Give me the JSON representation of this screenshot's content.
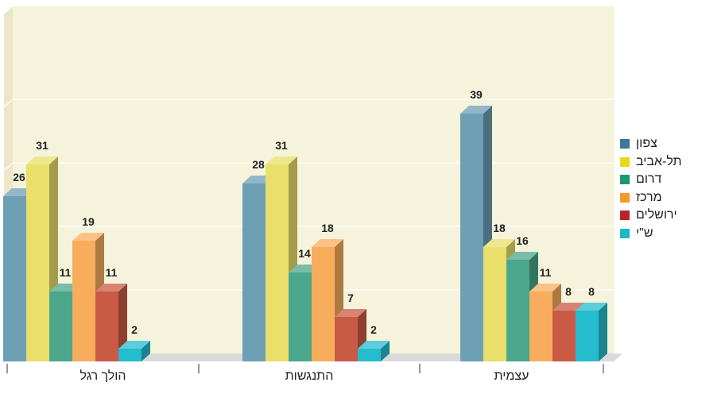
{
  "chart_data": {
    "type": "bar",
    "categories": [
      "הולך רגל",
      "התנגשות",
      "עצמית"
    ],
    "series": [
      {
        "name": "צפון",
        "color": "#6d9fb5",
        "values": [
          26,
          28,
          39
        ]
      },
      {
        "name": "תל-אביב",
        "color": "#eadf6a",
        "values": [
          31,
          31,
          18
        ]
      },
      {
        "name": "דרום",
        "color": "#4aa78b",
        "values": [
          11,
          14,
          16
        ]
      },
      {
        "name": "מרכז",
        "color": "#f8ad5c",
        "values": [
          19,
          18,
          11
        ]
      },
      {
        "name": "ירושלים",
        "color": "#c95b45",
        "values": [
          11,
          7,
          8
        ]
      },
      {
        "name": "ש\"י",
        "color": "#25bccd",
        "values": [
          2,
          2,
          8
        ]
      }
    ],
    "ylim": [
      0,
      45
    ],
    "grid": true,
    "legend_position": "right"
  },
  "legend_colors": [
    "#3a7a97",
    "#e8d919",
    "#1e9a6a",
    "#f79a2a",
    "#b9242a",
    "#1fb6c9"
  ]
}
